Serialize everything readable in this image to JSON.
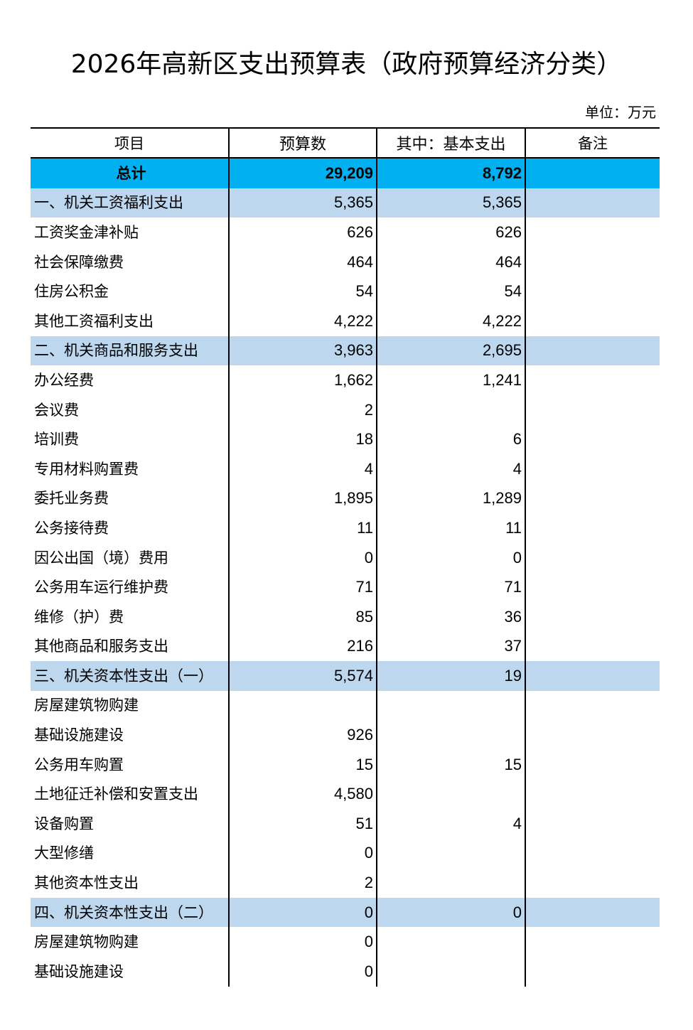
{
  "title": "2026年高新区支出预算表（政府预算经济分类）",
  "unit": "单位：万元",
  "header": [
    "项目",
    "预算数",
    "其中：基本支出",
    "备注"
  ],
  "rows": [
    {
      "label": "总计",
      "budget": "29,209",
      "basic": "8,792",
      "fill": "#00b0f0",
      "bold": true
    },
    {
      "label": "一、机关工资福利支出",
      "budget": "5,365",
      "basic": "5,365",
      "fill": "#bdd7ee"
    },
    {
      "label": "工资奖金津补贴",
      "budget": "626",
      "basic": "626"
    },
    {
      "label": "社会保障缴费",
      "budget": "464",
      "basic": "464"
    },
    {
      "label": "住房公积金",
      "budget": "54",
      "basic": "54"
    },
    {
      "label": "其他工资福利支出",
      "budget": "4,222",
      "basic": "4,222"
    },
    {
      "label": "二、机关商品和服务支出",
      "budget": "3,963",
      "basic": "2,695",
      "fill": "#bdd7ee"
    },
    {
      "label": "办公经费",
      "budget": "1,662",
      "basic": "1,241"
    },
    {
      "label": "会议费",
      "budget": "2"
    },
    {
      "label": "培训费",
      "budget": "18",
      "basic": "6"
    },
    {
      "label": "专用材料购置费",
      "budget": "4",
      "basic": "4"
    },
    {
      "label": "委托业务费",
      "budget": "1,895",
      "basic": "1,289"
    },
    {
      "label": "公务接待费",
      "budget": "11",
      "basic": "11"
    },
    {
      "label": "因公出国（境）费用",
      "budget": "0",
      "basic": "0"
    },
    {
      "label": "公务用车运行维护费",
      "budget": "71",
      "basic": "71"
    },
    {
      "label": "维修（护）费",
      "budget": "85",
      "basic": "36"
    },
    {
      "label": "其他商品和服务支出",
      "budget": "216",
      "basic": "37"
    },
    {
      "label": "三、机关资本性支出（一）",
      "budget": "5,574",
      "basic": "19",
      "fill": "#bdd7ee"
    },
    {
      "label": "房屋建筑物购建"
    },
    {
      "label": "基础设施建设",
      "budget": "926"
    },
    {
      "label": "公务用车购置",
      "budget": "15",
      "basic": "15"
    },
    {
      "label": "土地征迁补偿和安置支出",
      "budget": "4,580"
    },
    {
      "label": "设备购置",
      "budget": "51",
      "basic": "4"
    },
    {
      "label": "大型修缮",
      "budget": "0"
    },
    {
      "label": "其他资本性支出",
      "budget": "2"
    },
    {
      "label": "四、机关资本性支出（二）",
      "budget": "0",
      "basic": "0",
      "fill": "#bdd7ee"
    },
    {
      "label": "房屋建筑物购建",
      "budget": "0"
    },
    {
      "label": "基础设施建设",
      "budget": "0"
    }
  ]
}
